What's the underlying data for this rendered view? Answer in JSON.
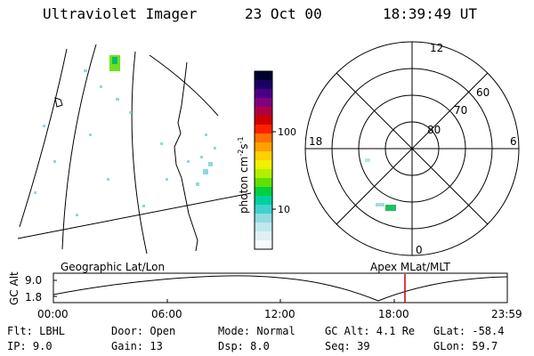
{
  "header": {
    "instrument": "Ultraviolet Imager",
    "date": "23 Oct 00",
    "time": "18:39:49 UT"
  },
  "colorbar": {
    "label": "photon cm",
    "label_sup1": "-2",
    "label_mid": "s",
    "label_sup2": "-1",
    "ticks": [
      "100",
      "10"
    ],
    "colors": [
      "#000030",
      "#1a0060",
      "#4b0082",
      "#800080",
      "#b00040",
      "#d00000",
      "#ff2000",
      "#ff7000",
      "#ffa000",
      "#ffd000",
      "#f0f000",
      "#b0f000",
      "#60e000",
      "#00d040",
      "#00d0a0",
      "#40d0d0",
      "#90dce0",
      "#c0e8ec",
      "#e0f0f4",
      "#f6fafc"
    ]
  },
  "polar": {
    "lat_labels": [
      "80",
      "70",
      "60"
    ],
    "mlt_labels": [
      "12",
      "18",
      "6",
      "0"
    ]
  },
  "orbit_panel": {
    "left_title": "Geographic Lat/Lon",
    "right_title": "Apex MLat/MLT",
    "axis_label": "GC Alt",
    "yticks": [
      "9.0",
      "1.8"
    ],
    "xticks": [
      "00:00",
      "06:00",
      "12:00",
      "18:00",
      "23:59"
    ],
    "marker_color": "#cc0000"
  },
  "info": {
    "filter": "Flt: LBHL",
    "ip": "IP:  9.0",
    "door": "Door: Open",
    "gain": "Gain: 13",
    "mode": "Mode: Normal",
    "dsp": "Dsp:    8.0",
    "gc_alt": "GC Alt: 4.1 Re",
    "seq": "Seq: 39",
    "glat": "GLat: -58.4",
    "glon": "GLon:  59.7"
  }
}
